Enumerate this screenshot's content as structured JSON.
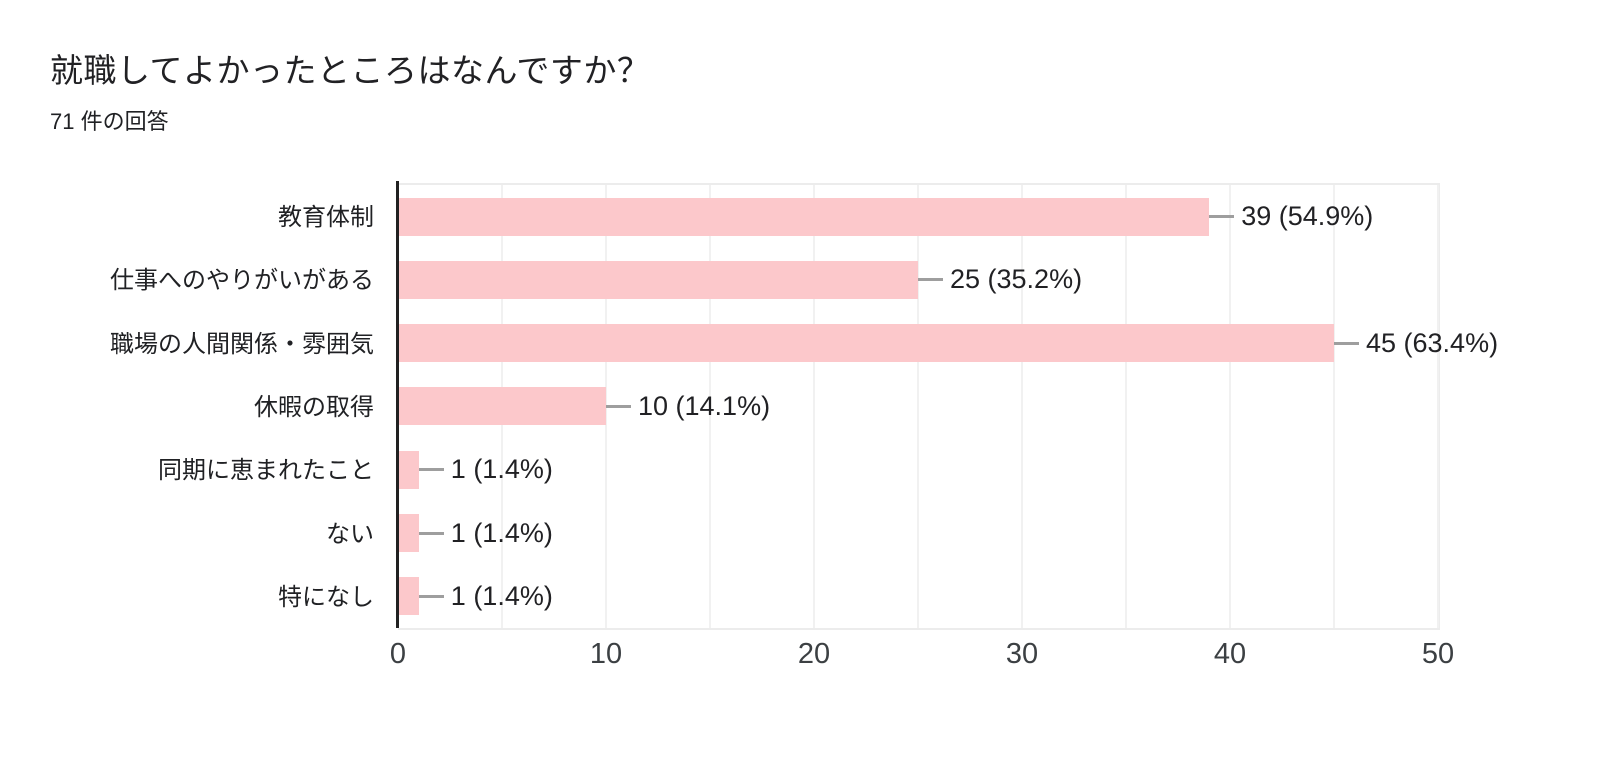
{
  "chart_data": {
    "type": "bar",
    "orientation": "horizontal",
    "title": "就職してよかったところはなんですか？",
    "subtitle": "71 件の回答",
    "categories": [
      "教育体制",
      "仕事へのやりがいがある",
      "職場の人間関係・雰囲気",
      "休暇の取得",
      "同期に恵まれたこと",
      "ない",
      "特になし"
    ],
    "values": [
      39,
      25,
      45,
      10,
      1,
      1,
      1
    ],
    "value_labels": [
      "39 (54.9%)",
      "25 (35.2%)",
      "45 (63.4%)",
      "10 (14.1%)",
      "1 (1.4%)",
      "1 (1.4%)",
      "1 (1.4%)"
    ],
    "xlim": [
      0,
      50
    ],
    "x_ticks": [
      0,
      10,
      20,
      30,
      40,
      50
    ],
    "grid_interval": 5,
    "grid_on": true,
    "legend_position": "none",
    "colors": {
      "bar": "#fcc8cb",
      "axis": "#212121",
      "grid": "#f1f1f1",
      "border": "#ececec",
      "callout": "#9e9e9e"
    }
  }
}
